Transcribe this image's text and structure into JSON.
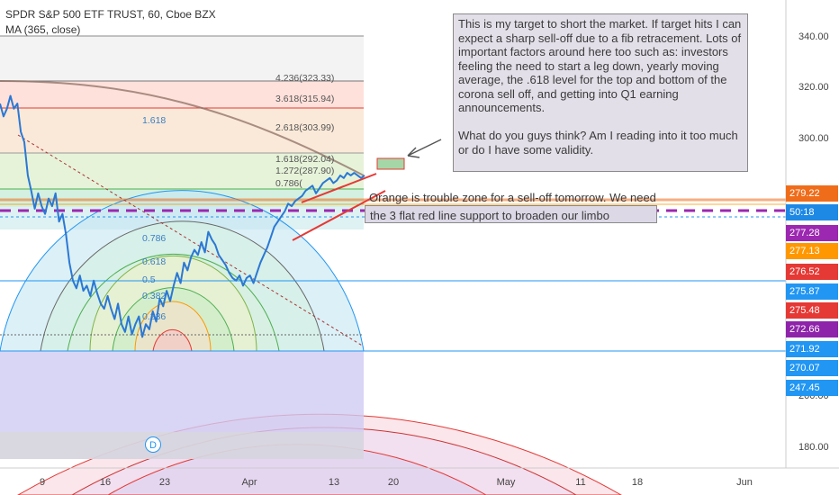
{
  "chart_data": {
    "type": "line",
    "title": "SPDR S&P 500 ETF TRUST, 60, Cboe BZX",
    "indicator": "MA (365, close)",
    "ylim": [
      175,
      348
    ],
    "yticks": [
      340,
      320,
      300,
      280,
      260,
      240,
      220,
      200,
      180
    ],
    "ytick_labels": [
      "340.00",
      "320.00",
      "300.00",
      "",
      "",
      "",
      "",
      "200.00",
      "180.00"
    ],
    "xtick_labels": [
      "9",
      "16",
      "23",
      "Apr",
      "13",
      "20",
      "May",
      "11",
      "18",
      "Jun"
    ],
    "series": [
      {
        "color": "#2b78d4",
        "x": [
          0,
          0.4,
          0.8,
          1.2,
          1.6,
          2.0,
          2.4,
          2.8,
          3.2,
          3.6,
          4.0,
          4.4,
          4.8,
          5.2,
          5.6,
          6.0,
          6.4,
          6.8,
          7.2,
          7.6,
          8.0,
          8.4,
          8.8,
          9.2,
          9.6,
          10.0,
          10.4,
          10.8,
          11.2,
          11.6,
          12.0,
          12.4,
          12.8,
          13.2,
          13.6,
          14.0,
          14.4,
          14.8,
          15.2,
          15.6,
          16.0,
          16.4,
          16.8,
          17.2,
          17.6,
          18.0,
          18.4,
          18.8,
          19.2,
          19.6,
          20.0,
          20.4,
          20.8,
          21.2,
          21.6,
          22.0,
          22.4,
          22.8,
          23.2,
          23.6,
          24.0,
          24.4,
          24.8,
          25.2,
          25.6,
          26.0,
          26.4,
          26.8,
          27.2,
          27.6,
          28.0,
          28.4,
          28.8,
          29.2,
          29.6,
          30.0,
          30.4,
          30.8,
          31.2,
          31.6,
          32.0,
          32.4,
          32.8,
          33.2,
          33.6,
          34.0,
          34.4,
          34.8,
          35.2,
          35.6,
          36.0,
          36.4,
          36.8,
          37.2,
          37.6,
          38.0,
          38.4,
          38.8,
          39.2,
          39.6,
          40.0,
          40.4,
          40.8,
          41.2,
          41.6,
          42.0
        ],
        "y": [
          314,
          309,
          312,
          317,
          312,
          314,
          303,
          299,
          286,
          280,
          273,
          279,
          274,
          271,
          277,
          274,
          279,
          268,
          271,
          263,
          252,
          245,
          242,
          247,
          241,
          243,
          239,
          245,
          240,
          236,
          234,
          239,
          234,
          230,
          236,
          228,
          225,
          231,
          224,
          228,
          231,
          223,
          228,
          226,
          233,
          229,
          238,
          235,
          241,
          237,
          243,
          248,
          244,
          252,
          249,
          254,
          257,
          255,
          260,
          256,
          264,
          261,
          259,
          255,
          253,
          251,
          248,
          246,
          245,
          247,
          243,
          246,
          247,
          244,
          248,
          252,
          255,
          258,
          262,
          266,
          268,
          270,
          272,
          275,
          274,
          276,
          277,
          278,
          280,
          281,
          282,
          279,
          281,
          283,
          284,
          285,
          283,
          284,
          286,
          285,
          287,
          286,
          287,
          286,
          285,
          286
        ]
      }
    ],
    "fib_labels": [
      "4.236(323.33)",
      "3.618(315.94)",
      "2.618(303.99)",
      "1.618(292.04)",
      "1.272(287.90)",
      "0.786(",
      "1.618",
      "0.786",
      "0.618",
      "0.5",
      "0.382",
      "0.236"
    ],
    "price_tags": [
      {
        "label": "279.22",
        "color": "#ef6c1a"
      },
      {
        "label": "50:18",
        "color": "#1e88e5"
      },
      {
        "label": "277.28",
        "color": "#9c27b0"
      },
      {
        "label": "277.13",
        "color": "#ff9800"
      },
      {
        "label": "276.52",
        "color": "#e53935"
      },
      {
        "label": "275.87",
        "color": "#2196f3"
      },
      {
        "label": "275.48",
        "color": "#e53935"
      },
      {
        "label": "272.66",
        "color": "#8e24aa"
      },
      {
        "label": "271.92",
        "color": "#2196f3"
      },
      {
        "label": "270.07",
        "color": "#2196f3"
      },
      {
        "label": "247.45",
        "color": "#2196f3"
      }
    ],
    "annotation_main": "This is my target to short the market. If target hits I can expect a sharp sell-off due to a fib retracement. Lots of important factors around here too such as: investors feeling the need to start a leg down, yearly moving average, the .618 level for the top and bottom of the corona sell off, and getting into Q1 earning announcements.\n\nWhat do you guys think? Am I reading into it too much or do I have some validity.",
    "annotation_orange": "Orange is trouble zone for a sell-off tomorrow. We need",
    "annotation_overlap": "the 3 flat red line support to broaden our limbo",
    "event_marker": "D"
  }
}
